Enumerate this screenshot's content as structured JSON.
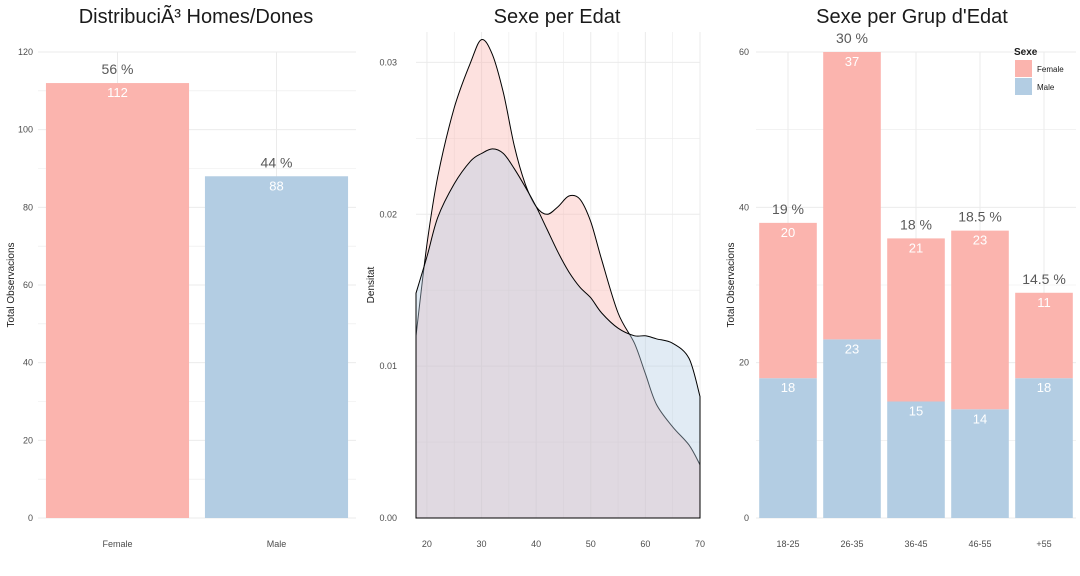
{
  "colors": {
    "female": "#FBB4AE",
    "male": "#B3CDE3",
    "grid": "#EBEBEB",
    "background": "#FFFFFF"
  },
  "chart_data": [
    {
      "type": "bar",
      "title": "DistribuciÃ³ Homes/Dones",
      "xlabel": "",
      "ylabel": "Total Observacions",
      "categories": [
        "Female",
        "Male"
      ],
      "values": [
        112,
        88
      ],
      "value_labels": [
        "112",
        "88"
      ],
      "percent_labels": [
        "56 %",
        "44 %"
      ],
      "ylim": [
        0,
        120
      ],
      "yticks": [
        0,
        20,
        40,
        60,
        80,
        100,
        120
      ],
      "grid": true
    },
    {
      "type": "area",
      "title": "Sexe per Edat",
      "xlabel": "",
      "ylabel": "Densitat",
      "xlim": [
        18,
        70
      ],
      "ylim": [
        0,
        0.032
      ],
      "xticks": [
        20,
        30,
        40,
        50,
        60,
        70
      ],
      "yticks": [
        0.0,
        0.01,
        0.02,
        0.03
      ],
      "ytick_labels": [
        "0.00",
        "0.01",
        "0.02",
        "0.03"
      ],
      "grid": true,
      "series": [
        {
          "name": "Female",
          "x": [
            18,
            20,
            22,
            25,
            28,
            30,
            32,
            34,
            36,
            38,
            40,
            42,
            44,
            46,
            48,
            50,
            52,
            55,
            58,
            60,
            62,
            65,
            68,
            70
          ],
          "y": [
            0.012,
            0.018,
            0.0225,
            0.027,
            0.03,
            0.0315,
            0.0305,
            0.028,
            0.0245,
            0.022,
            0.0205,
            0.02,
            0.0205,
            0.0212,
            0.021,
            0.0195,
            0.017,
            0.0135,
            0.0115,
            0.0095,
            0.0075,
            0.006,
            0.0048,
            0.0035
          ]
        },
        {
          "name": "Male",
          "x": [
            18,
            20,
            22,
            25,
            28,
            30,
            32,
            34,
            36,
            38,
            40,
            42,
            44,
            46,
            48,
            50,
            52,
            55,
            58,
            60,
            62,
            65,
            68,
            70
          ],
          "y": [
            0.0148,
            0.0172,
            0.0198,
            0.022,
            0.0235,
            0.024,
            0.0243,
            0.024,
            0.023,
            0.0218,
            0.0205,
            0.019,
            0.0175,
            0.0162,
            0.0152,
            0.0145,
            0.0135,
            0.0125,
            0.012,
            0.012,
            0.0118,
            0.0115,
            0.0105,
            0.008
          ]
        }
      ]
    },
    {
      "type": "bar",
      "title": "Sexe per Grup d'Edat",
      "xlabel": "",
      "ylabel": "Total Observacions",
      "categories": [
        "18-25",
        "26-35",
        "36-45",
        "46-55",
        "+55"
      ],
      "series": [
        {
          "name": "Male",
          "values": [
            18,
            23,
            15,
            14,
            18
          ]
        },
        {
          "name": "Female",
          "values": [
            20,
            37,
            21,
            23,
            11
          ]
        }
      ],
      "percent_labels": [
        "19 %",
        "30 %",
        "18 %",
        "18.5 %",
        "14.5 %"
      ],
      "ylim": [
        0,
        60
      ],
      "yticks": [
        0,
        20,
        40,
        60
      ],
      "grid": true,
      "legend_title": "Sexe",
      "legend_entries": [
        "Female",
        "Male"
      ],
      "legend_position": "top-right"
    }
  ]
}
